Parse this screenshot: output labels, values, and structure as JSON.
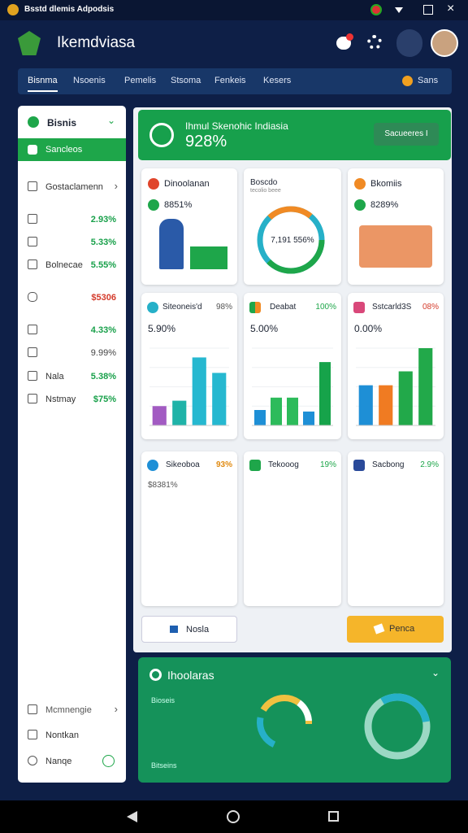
{
  "status_bar": {
    "title": "Bsstd dlemis Adpodsis"
  },
  "header": {
    "app_name": "Ikemdviasa"
  },
  "nav": {
    "tabs": [
      "Bisnma",
      "Nsoenis",
      "Pemelis",
      "Stsoma",
      "Fenkeis",
      "Kesers"
    ],
    "account": "Sans"
  },
  "sidebar": {
    "section": "Bisnis",
    "active": "Sancleos",
    "group": "Gostaclamenn",
    "items": [
      {
        "value": "2.93%"
      },
      {
        "value": "5.33%"
      },
      {
        "label": "Bolnecae",
        "value": "5.55%"
      },
      {
        "value": "$5306"
      },
      {
        "value": "4.33%"
      },
      {
        "value": "9.99%"
      },
      {
        "label": "Nala",
        "value": "5.38%"
      },
      {
        "label": "Nstmay",
        "value": "$75%"
      }
    ],
    "bottom": [
      "Mcmnengie",
      "Nontkan",
      "Nanqe"
    ]
  },
  "banner": {
    "title": "Ihmul Skenohic Indiasia",
    "value": "928%",
    "button": "Sacueeres I"
  },
  "summary_cards": [
    {
      "title": "Dinoolanan",
      "value": "8851%"
    },
    {
      "title": "Boscdo",
      "subtitle": "tecolio beee",
      "center": "7,191 556%"
    },
    {
      "title": "Bkomiis",
      "value": "8289%"
    }
  ],
  "chart_cards": [
    {
      "title": "Siteoneis'd",
      "badge": "98%",
      "value": "5.90%",
      "chart": {
        "type": "bar",
        "ylim": [
          0,
          100
        ],
        "values": [
          25,
          32,
          88,
          68
        ],
        "colors": [
          "#a25bc2",
          "#1fb3a8",
          "#26b8d0",
          "#26b8d0"
        ]
      }
    },
    {
      "title": "Deabat",
      "badge": "100%",
      "value": "5.00%",
      "chart": {
        "type": "bar",
        "ylim": [
          0,
          100
        ],
        "values": [
          20,
          36,
          36,
          18,
          82
        ],
        "colors": [
          "#1e8fd6",
          "#2dbb5b",
          "#2dbb5b",
          "#1e8fd6",
          "#16a34a"
        ]
      }
    },
    {
      "title": "Sstcarld3S",
      "badge": "08%",
      "value": "0.00%",
      "chart": {
        "type": "bar",
        "ylim": [
          0,
          100
        ],
        "values": [
          52,
          52,
          70,
          100
        ],
        "colors": [
          "#1e8fd6",
          "#f07b22",
          "#22a94a",
          "#22a94a"
        ]
      }
    }
  ],
  "stat_cards": [
    {
      "title": "Sikeoboa",
      "badge": "93%",
      "value": "$8381%"
    },
    {
      "title": "Tekooog",
      "badge": "19%"
    },
    {
      "title": "Sacbong",
      "badge": "2.9%"
    }
  ],
  "buttons": [
    "Nosla",
    "Penca"
  ],
  "bottom_panel": {
    "title": "Ihoolaras",
    "label_top": "Bioseis",
    "label_bottom": "Bitseins"
  }
}
